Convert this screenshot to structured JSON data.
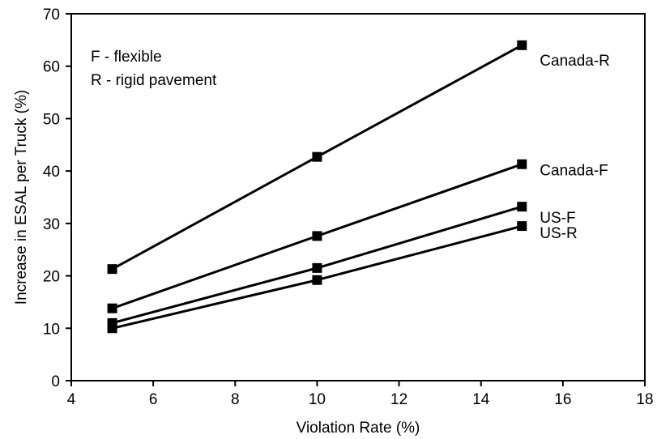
{
  "chart_data": {
    "type": "line",
    "xlabel": "Violation Rate (%)",
    "ylabel": "Increase in ESAL per Truck (%)",
    "xlim": [
      4,
      18
    ],
    "ylim": [
      0,
      70
    ],
    "xticks": [
      4,
      6,
      8,
      10,
      12,
      14,
      16,
      18
    ],
    "yticks": [
      0,
      10,
      20,
      30,
      40,
      50,
      60,
      70
    ],
    "grid": false,
    "legend": "none",
    "x": [
      5,
      10,
      15
    ],
    "annotations": [
      "F - flexible",
      "R - rigid pavement"
    ],
    "colors": {
      "line": "#000000",
      "marker": "#000000",
      "axis": "#000000"
    },
    "series": [
      {
        "name": "Canada-R",
        "values": [
          21.3,
          42.7,
          64.0
        ]
      },
      {
        "name": "Canada-F",
        "values": [
          13.8,
          27.6,
          41.3
        ]
      },
      {
        "name": "US-F",
        "values": [
          11.0,
          21.5,
          33.2
        ]
      },
      {
        "name": "US-R",
        "values": [
          10.0,
          19.2,
          29.5
        ]
      }
    ]
  }
}
